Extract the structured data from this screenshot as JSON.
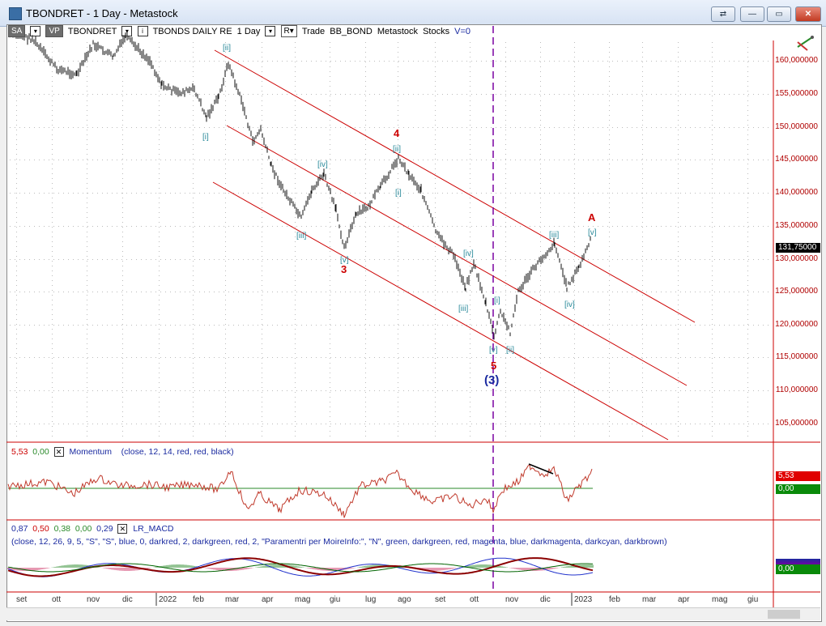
{
  "window": {
    "title": "TBONDRET - 1 Day - Metastock",
    "buttons": [
      "⇄",
      "—",
      "▭",
      "✕"
    ]
  },
  "toolbar": {
    "sa": "SA",
    "vp": "VP",
    "symbol": "TBONDRET",
    "security_name": "TBONDS DAILY RE",
    "period": "1 Day",
    "r": "R",
    "trade": "Trade",
    "source": "BB_BOND",
    "app": "Metastock",
    "asset": "Stocks",
    "v": "V=0"
  },
  "price_axis": [
    "160,000000",
    "155,000000",
    "150,000000",
    "145,000000",
    "140,000000",
    "135,000000",
    "130,000000",
    "125,000000",
    "120,000000",
    "115,000000",
    "110,000000",
    "105,000000"
  ],
  "last_price": "131,75000",
  "months": [
    "set",
    "ott",
    "nov",
    "dic",
    "2022",
    "feb",
    "mar",
    "apr",
    "mag",
    "giu",
    "lug",
    "ago",
    "set",
    "ott",
    "nov",
    "dic",
    "2023",
    "feb",
    "mar",
    "apr",
    "mag",
    "giu"
  ],
  "wave_labels": {
    "i1": "[i]",
    "ii1": "[ii]",
    "iii1": "[iii]",
    "iv1": "[iv]",
    "v1": "[v]",
    "w3": "3",
    "i2": "[i]",
    "ii2": "[ii]",
    "w4": "4",
    "iii2": "[iii]",
    "iv2": "[iv]",
    "v2": "[v]",
    "w5": "5",
    "big3": "(3)",
    "i3": "[i]",
    "ii3": "[ii]",
    "iii3": "[iii]",
    "iv3": "[iv]",
    "v3": "[v]",
    "wA": "A"
  },
  "momentum": {
    "value": "5,53",
    "zero": "0,00",
    "checkbox": "✕",
    "name": "Momentum",
    "params": "(close,  12,  14,  red,  red,  black)",
    "tag_value": "5,53",
    "tag_zero": "0,00"
  },
  "macd": {
    "values": [
      "0,87",
      "0,50",
      "0,38",
      "0,00",
      "0,29"
    ],
    "checkbox": "✕",
    "name": "LR_MACD",
    "params": "(close,  12,  26,  9,  5,  \"S\",  \"S\",  blue,  0,  darkred,  2,  darkgreen,  red,  2,  \"Paramentri per MoireInfo:\",  \"N\",  green,  darkgreen,  red,  magenta,  blue,  darkmagenta,  darkcyan,  darkbrown)",
    "tag_value": "0,00"
  },
  "colors": {
    "channel": "#cc0000",
    "wave_minor": "#2a8a9a",
    "wave_major": "#cc0000",
    "cycle": "#1a2aa0",
    "divider": "#7a00a0"
  }
}
